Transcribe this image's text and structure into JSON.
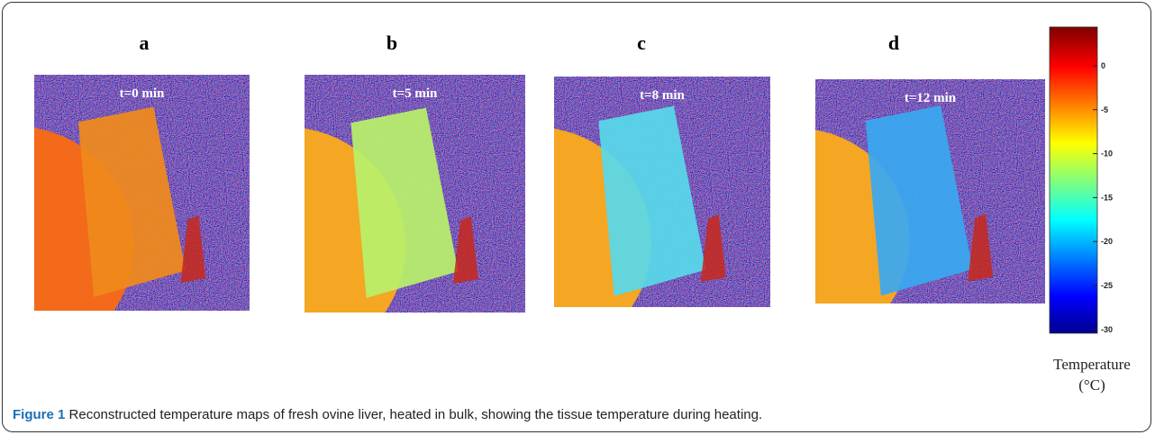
{
  "figure": {
    "panels": [
      {
        "label": "a",
        "time": "t=0 min"
      },
      {
        "label": "b",
        "time": "t=5 min"
      },
      {
        "label": "c",
        "time": "t=8 min"
      },
      {
        "label": "d",
        "time": "t=12 min"
      }
    ],
    "colorbar": {
      "ticks": [
        "0",
        "-5",
        "-10",
        "-15",
        "-20",
        "-25",
        "-30"
      ],
      "title": "Temperature",
      "unit": "(°C)"
    }
  },
  "caption": {
    "label": "Figure 1",
    "text": "Reconstructed temperature maps of fresh ovine liver, heated in bulk, showing the tissue temperature during heating."
  }
}
